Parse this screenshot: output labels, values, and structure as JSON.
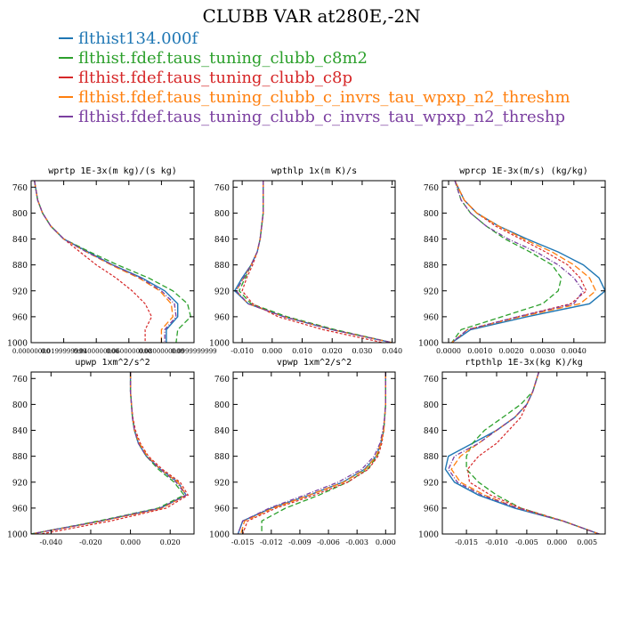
{
  "title": "CLUBB VAR at280E,-2N",
  "legend": [
    {
      "label": "flthist134.000f",
      "color": "#1f77b4"
    },
    {
      "label": "flthist.fdef.taus_tuning_clubb_c8m2",
      "color": "#2ca02c"
    },
    {
      "label": "flthist.fdef.taus_tuning_clubb_c8p",
      "color": "#d62728"
    },
    {
      "label": "flthist.fdef.taus_tuning_clubb_c_invrs_tau_wpxp_n2_threshm",
      "color": "#ff7f0e"
    },
    {
      "label": "flthist.fdef.taus_tuning_clubb_c_invrs_tau_wpxp_n2_threshp",
      "color": "#7b3fa0"
    }
  ],
  "chart_data": [
    {
      "type": "line",
      "title": "wprtp  1E-3x(m kg)/(s kg)",
      "y": [
        750,
        780,
        800,
        820,
        840,
        860,
        880,
        900,
        920,
        940,
        960,
        980,
        1000
      ],
      "ylim": [
        1000,
        750
      ],
      "yticks": [
        760,
        800,
        840,
        880,
        920,
        960,
        1000
      ],
      "xlim": [
        0,
        0.1
      ],
      "xticks": [
        0,
        0.02,
        0.04,
        0.06,
        0.08,
        0.1
      ],
      "xtick_labels": [
        "0.00000000",
        "0.0199999999",
        "0.0400000000",
        "0.0600000000",
        "0.0800000000",
        "0.0999999999"
      ],
      "series": [
        {
          "values": [
            0.002,
            0.004,
            0.007,
            0.012,
            0.02,
            0.035,
            0.05,
            0.068,
            0.082,
            0.09,
            0.09,
            0.083,
            0.083
          ]
        },
        {
          "values": [
            0.002,
            0.004,
            0.007,
            0.012,
            0.02,
            0.036,
            0.053,
            0.072,
            0.087,
            0.096,
            0.098,
            0.09,
            0.089
          ]
        },
        {
          "values": [
            0.002,
            0.004,
            0.007,
            0.012,
            0.02,
            0.03,
            0.04,
            0.052,
            0.062,
            0.07,
            0.074,
            0.07,
            0.07
          ]
        },
        {
          "values": [
            0.002,
            0.004,
            0.007,
            0.012,
            0.02,
            0.034,
            0.049,
            0.066,
            0.079,
            0.086,
            0.087,
            0.08,
            0.08
          ]
        },
        {
          "values": [
            0.002,
            0.004,
            0.007,
            0.012,
            0.02,
            0.034,
            0.05,
            0.067,
            0.08,
            0.088,
            0.089,
            0.082,
            0.082
          ]
        }
      ]
    },
    {
      "type": "line",
      "title": "wpthlp  1x(m K)/s",
      "y": [
        750,
        780,
        800,
        820,
        840,
        860,
        880,
        900,
        920,
        940,
        960,
        980,
        1000
      ],
      "ylim": [
        1000,
        750
      ],
      "yticks": [
        760,
        800,
        840,
        880,
        920,
        960,
        1000
      ],
      "xlim": [
        -0.013,
        0.041
      ],
      "xticks": [
        -0.01,
        0.0,
        0.01,
        0.02,
        0.03,
        0.04
      ],
      "xtick_labels": [
        "-0.010",
        "0.000",
        "0.010",
        "0.020",
        "0.030",
        "0.040"
      ],
      "series": [
        {
          "values": [
            -0.003,
            -0.003,
            -0.003,
            -0.0035,
            -0.004,
            -0.005,
            -0.007,
            -0.01,
            -0.0125,
            -0.008,
            0.004,
            0.02,
            0.04
          ]
        },
        {
          "values": [
            -0.003,
            -0.003,
            -0.003,
            -0.0035,
            -0.004,
            -0.005,
            -0.007,
            -0.009,
            -0.011,
            -0.007,
            0.005,
            0.021,
            0.04
          ]
        },
        {
          "values": [
            -0.003,
            -0.003,
            -0.003,
            -0.0035,
            -0.004,
            -0.005,
            -0.0065,
            -0.0085,
            -0.01,
            -0.0065,
            0.002,
            0.017,
            0.037
          ]
        },
        {
          "values": [
            -0.003,
            -0.003,
            -0.003,
            -0.0035,
            -0.004,
            -0.005,
            -0.007,
            -0.0095,
            -0.012,
            -0.008,
            0.004,
            0.02,
            0.04
          ]
        },
        {
          "values": [
            -0.003,
            -0.003,
            -0.003,
            -0.0035,
            -0.004,
            -0.005,
            -0.007,
            -0.0095,
            -0.012,
            -0.008,
            0.004,
            0.02,
            0.04
          ]
        }
      ]
    },
    {
      "type": "line",
      "title": "wprcp  1E-3x(m/s) (kg/kg)",
      "y": [
        750,
        780,
        800,
        820,
        840,
        860,
        880,
        900,
        920,
        940,
        960,
        980,
        1000
      ],
      "ylim": [
        1000,
        750
      ],
      "yticks": [
        760,
        800,
        840,
        880,
        920,
        960,
        1000
      ],
      "xlim": [
        -0.0002,
        0.005
      ],
      "xticks": [
        0.0,
        0.001,
        0.002,
        0.003,
        0.004
      ],
      "xtick_labels": [
        "0.0000",
        "0.0010",
        "0.0020",
        "0.0030",
        "0.0040"
      ],
      "series": [
        {
          "values": [
            0.0002,
            0.0005,
            0.0009,
            0.0016,
            0.0025,
            0.0035,
            0.0043,
            0.0048,
            0.005,
            0.0045,
            0.0025,
            0.0007,
            0.0001
          ]
        },
        {
          "values": [
            0.0002,
            0.0004,
            0.0007,
            0.0012,
            0.0018,
            0.0026,
            0.0033,
            0.0036,
            0.0035,
            0.003,
            0.0017,
            0.0004,
            0.0001
          ]
        },
        {
          "values": [
            0.0002,
            0.0005,
            0.0009,
            0.0015,
            0.0023,
            0.0031,
            0.0038,
            0.0042,
            0.0044,
            0.0039,
            0.0022,
            0.0006,
            0.0001
          ]
        },
        {
          "values": [
            0.0002,
            0.0005,
            0.0009,
            0.0016,
            0.0024,
            0.0033,
            0.004,
            0.0045,
            0.0047,
            0.0042,
            0.0023,
            0.0006,
            0.0001
          ]
        },
        {
          "values": [
            0.0002,
            0.0004,
            0.0007,
            0.0012,
            0.0019,
            0.0028,
            0.0035,
            0.004,
            0.0043,
            0.004,
            0.0022,
            0.0006,
            0.0001
          ]
        }
      ]
    },
    {
      "type": "line",
      "title": "upwp   1xm^2/s^2",
      "y": [
        750,
        780,
        800,
        820,
        840,
        860,
        880,
        900,
        920,
        940,
        960,
        980,
        1000
      ],
      "ylim": [
        1000,
        750
      ],
      "yticks": [
        760,
        800,
        840,
        880,
        920,
        960,
        1000
      ],
      "xlim": [
        -0.05,
        0.032
      ],
      "xticks": [
        -0.04,
        -0.02,
        0.0,
        0.02
      ],
      "xtick_labels": [
        "-0.040",
        "-0.020",
        "0.000",
        "0.020"
      ],
      "series": [
        {
          "values": [
            0.0,
            0.0,
            0.0005,
            0.001,
            0.002,
            0.004,
            0.008,
            0.015,
            0.024,
            0.028,
            0.015,
            -0.015,
            -0.05
          ]
        },
        {
          "values": [
            0.0,
            0.0,
            0.0005,
            0.001,
            0.002,
            0.004,
            0.008,
            0.014,
            0.022,
            0.027,
            0.014,
            -0.016,
            -0.05
          ]
        },
        {
          "values": [
            0.0,
            0.0,
            0.0005,
            0.0012,
            0.0025,
            0.005,
            0.009,
            0.016,
            0.025,
            0.029,
            0.018,
            -0.01,
            -0.045
          ]
        },
        {
          "values": [
            0.0,
            0.0,
            0.0005,
            0.001,
            0.002,
            0.0045,
            0.0085,
            0.015,
            0.024,
            0.028,
            0.016,
            -0.014,
            -0.05
          ]
        },
        {
          "values": [
            0.0,
            0.0,
            0.0005,
            0.001,
            0.002,
            0.004,
            0.008,
            0.015,
            0.023,
            0.028,
            0.015,
            -0.015,
            -0.05
          ]
        }
      ]
    },
    {
      "type": "line",
      "title": "vpwp   1xm^2/s^2",
      "y": [
        750,
        780,
        800,
        820,
        840,
        860,
        880,
        900,
        920,
        940,
        960,
        980,
        1000
      ],
      "ylim": [
        1000,
        750
      ],
      "yticks": [
        760,
        800,
        840,
        880,
        920,
        960,
        1000
      ],
      "xlim": [
        -0.016,
        0.001
      ],
      "xticks": [
        -0.015,
        -0.012,
        -0.009,
        -0.006,
        -0.003,
        0.0
      ],
      "xtick_labels": [
        "-0.015",
        "-0.012",
        "-0.009",
        "-0.006",
        "-0.003",
        "0.000"
      ],
      "series": [
        {
          "values": [
            0.0,
            0.0,
            0.0,
            -0.0001,
            -0.0002,
            -0.0005,
            -0.001,
            -0.0022,
            -0.0045,
            -0.008,
            -0.012,
            -0.015,
            -0.0155
          ]
        },
        {
          "values": [
            0.0,
            0.0,
            0.0,
            -0.0001,
            -0.0002,
            -0.0005,
            -0.0009,
            -0.0019,
            -0.004,
            -0.007,
            -0.0105,
            -0.013,
            -0.013
          ]
        },
        {
          "values": [
            0.0,
            0.0,
            0.0,
            -0.0001,
            -0.0002,
            -0.0004,
            -0.0008,
            -0.0018,
            -0.004,
            -0.0075,
            -0.0115,
            -0.0145,
            -0.015
          ]
        },
        {
          "values": [
            0.0,
            0.0,
            0.0,
            -0.0001,
            -0.0002,
            -0.0005,
            -0.001,
            -0.0021,
            -0.0044,
            -0.008,
            -0.0118,
            -0.0148,
            -0.0152
          ]
        },
        {
          "values": [
            0.0,
            0.0,
            0.0,
            -0.0001,
            -0.0003,
            -0.0006,
            -0.0012,
            -0.0025,
            -0.005,
            -0.0085,
            -0.0122,
            -0.015,
            -0.0155
          ]
        }
      ]
    },
    {
      "type": "line",
      "title": "rtpthlp  1E-3x(kg K)/kg",
      "y": [
        750,
        780,
        800,
        820,
        840,
        860,
        880,
        900,
        920,
        940,
        960,
        980,
        1000
      ],
      "ylim": [
        1000,
        750
      ],
      "yticks": [
        760,
        800,
        840,
        880,
        920,
        960,
        1000
      ],
      "xlim": [
        -0.019,
        0.008
      ],
      "xticks": [
        -0.015,
        -0.01,
        -0.005,
        0.0,
        0.005
      ],
      "xtick_labels": [
        "-0.015",
        "-0.010",
        "-0.005",
        "0.000",
        "0.005"
      ],
      "series": [
        {
          "values": [
            -0.003,
            -0.004,
            -0.005,
            -0.007,
            -0.01,
            -0.014,
            -0.018,
            -0.0185,
            -0.017,
            -0.013,
            -0.007,
            0.001,
            0.007
          ]
        },
        {
          "values": [
            -0.003,
            -0.004,
            -0.006,
            -0.009,
            -0.012,
            -0.014,
            -0.015,
            -0.015,
            -0.013,
            -0.01,
            -0.006,
            0.001,
            0.007
          ]
        },
        {
          "values": [
            -0.003,
            -0.004,
            -0.005,
            -0.006,
            -0.008,
            -0.01,
            -0.013,
            -0.0148,
            -0.0145,
            -0.011,
            -0.006,
            0.001,
            0.007
          ]
        },
        {
          "values": [
            -0.003,
            -0.004,
            -0.005,
            -0.007,
            -0.01,
            -0.013,
            -0.016,
            -0.0175,
            -0.016,
            -0.012,
            -0.0065,
            0.001,
            0.007
          ]
        },
        {
          "values": [
            -0.003,
            -0.004,
            -0.005,
            -0.007,
            -0.01,
            -0.013,
            -0.017,
            -0.018,
            -0.0165,
            -0.0125,
            -0.0065,
            0.001,
            0.007
          ]
        }
      ]
    }
  ]
}
